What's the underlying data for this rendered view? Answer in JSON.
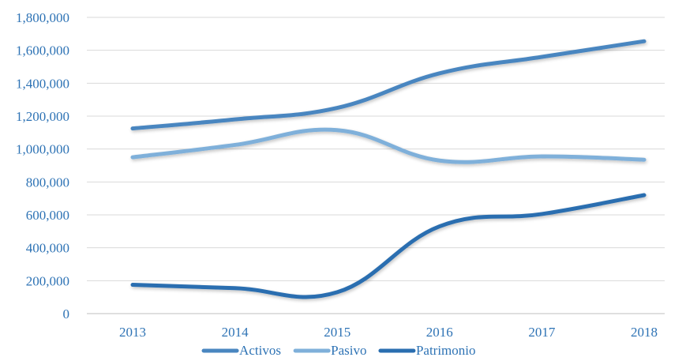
{
  "chart_data": {
    "type": "line",
    "title": "",
    "xlabel": "",
    "ylabel": "",
    "categories": [
      "2013",
      "2014",
      "2015",
      "2016",
      "2017",
      "2018"
    ],
    "y_ticks": [
      "0",
      "200,000",
      "400,000",
      "600,000",
      "800,000",
      "1,000,000",
      "1,200,000",
      "1,400,000",
      "1,600,000",
      "1,800,000"
    ],
    "ylim": [
      0,
      1800000
    ],
    "grid": true,
    "smooth": true,
    "legend_position": "bottom",
    "series": [
      {
        "name": "Activos",
        "color": "#4a86c0",
        "values": [
          1125000,
          1180000,
          1250000,
          1460000,
          1560000,
          1655000
        ]
      },
      {
        "name": "Pasivo",
        "color": "#7fb0da",
        "values": [
          950000,
          1025000,
          1115000,
          930000,
          955000,
          935000
        ]
      },
      {
        "name": "Patrimonio",
        "color": "#2a6eb0",
        "values": [
          175000,
          155000,
          130000,
          530000,
          605000,
          720000
        ]
      }
    ],
    "axis_label_color": "#2e73b5",
    "grid_color": "#d9d9d9"
  }
}
